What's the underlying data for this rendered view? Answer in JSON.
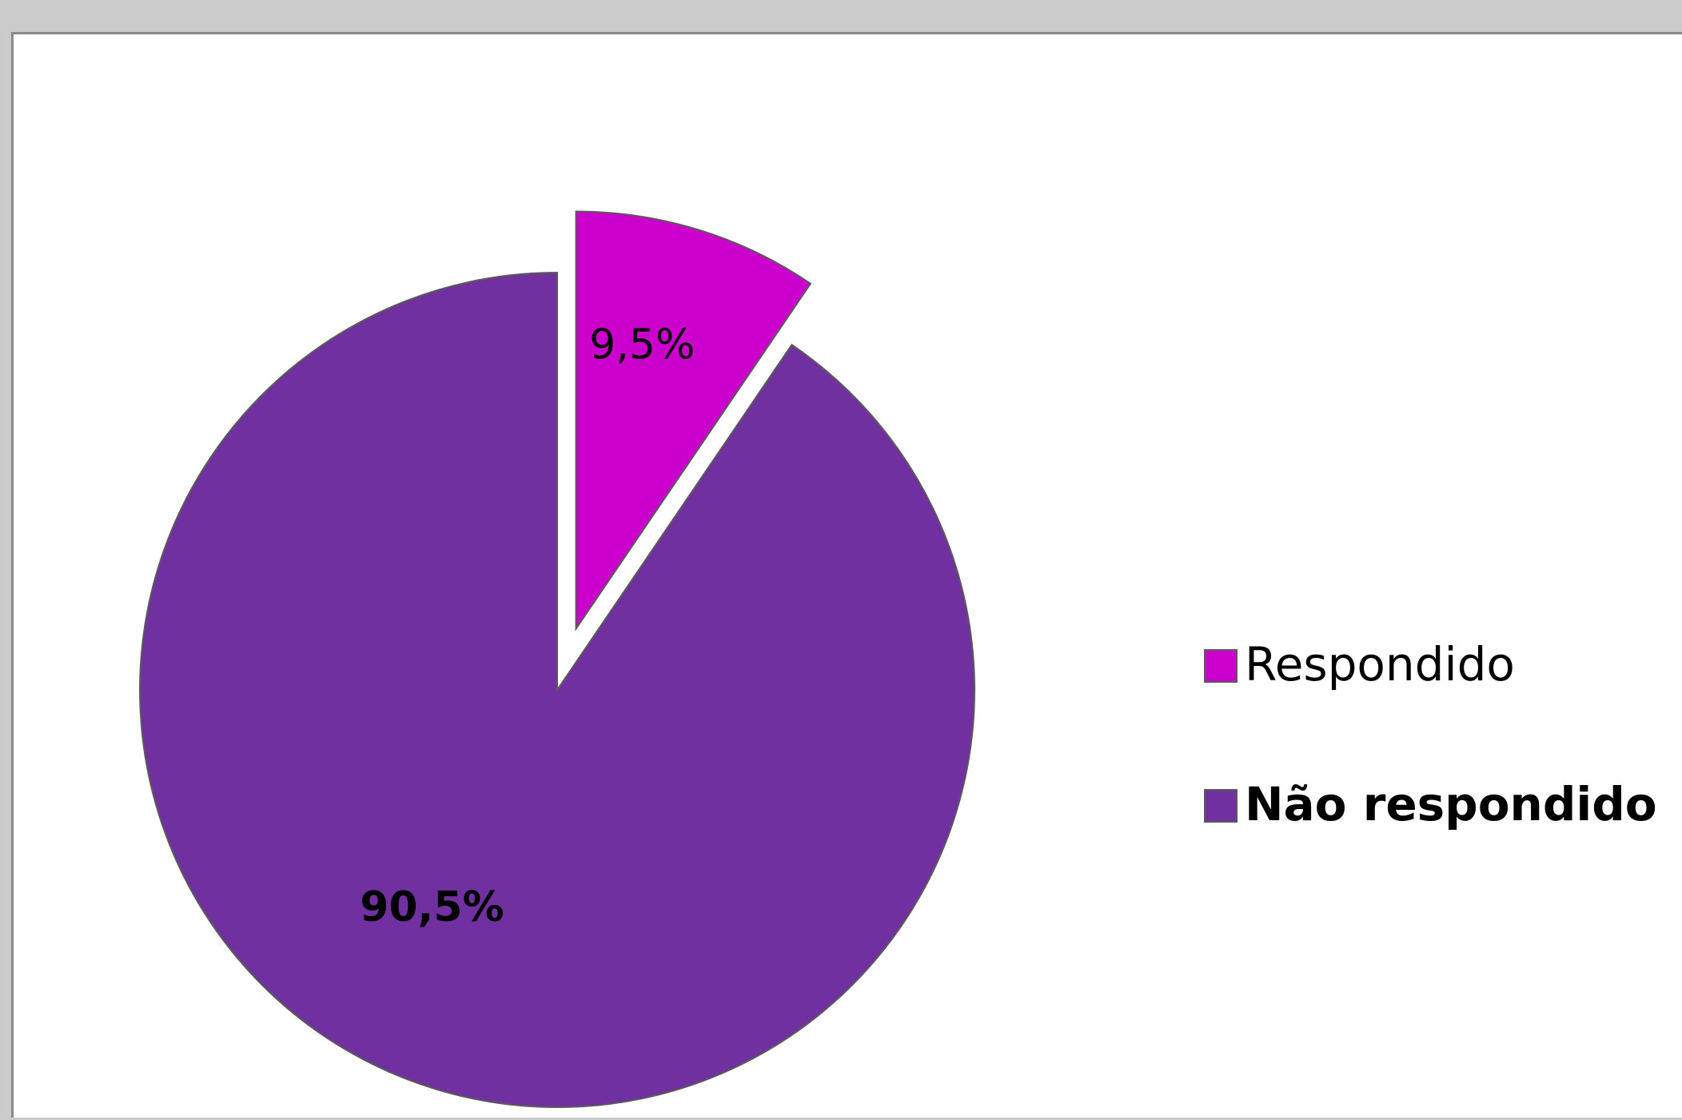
{
  "chart_data": {
    "type": "pie",
    "title": "",
    "categories": [
      "Respondido",
      "Não respondido"
    ],
    "values": [
      9.5,
      90.5
    ],
    "data_labels": [
      "9,5%",
      "90,5%"
    ],
    "colors": [
      "#cc00cc",
      "#7030a0"
    ],
    "exploded": [
      "Respondido"
    ],
    "legend": {
      "placement": "right",
      "entries": [
        "Respondido",
        "Não respondido"
      ]
    }
  }
}
